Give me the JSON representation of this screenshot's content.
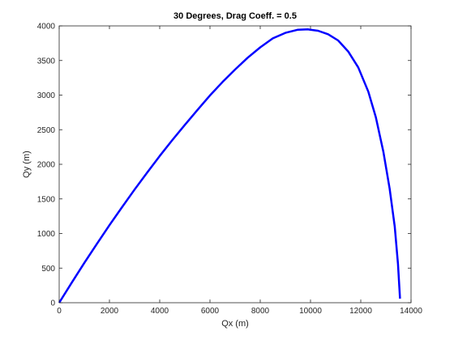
{
  "chart_data": {
    "type": "line",
    "title": "30 Degrees, Drag Coeff. = 0.5",
    "xlabel": "Qx (m)",
    "ylabel": "Qy (m)",
    "xlim": [
      0,
      14000
    ],
    "ylim": [
      0,
      4000
    ],
    "x_ticks": [
      0,
      2000,
      4000,
      6000,
      8000,
      10000,
      12000,
      14000
    ],
    "y_ticks": [
      0,
      500,
      1000,
      1500,
      2000,
      2500,
      3000,
      3500,
      4000
    ],
    "grid": false,
    "legend": "none",
    "series": [
      {
        "color": "#0000ff",
        "x": [
          0,
          500,
          1000,
          1500,
          2000,
          2500,
          3000,
          3500,
          4000,
          4500,
          5000,
          5500,
          6000,
          6500,
          7000,
          7500,
          8000,
          8500,
          9000,
          9500,
          9900,
          10300,
          10700,
          11100,
          11500,
          11900,
          12300,
          12600,
          12900,
          13150,
          13350,
          13480,
          13560
        ],
        "y": [
          0,
          290,
          575,
          850,
          1120,
          1380,
          1635,
          1880,
          2120,
          2350,
          2570,
          2785,
          2995,
          3190,
          3370,
          3540,
          3690,
          3820,
          3900,
          3945,
          3950,
          3930,
          3880,
          3790,
          3630,
          3400,
          3050,
          2680,
          2180,
          1650,
          1100,
          560,
          60
        ]
      }
    ]
  }
}
